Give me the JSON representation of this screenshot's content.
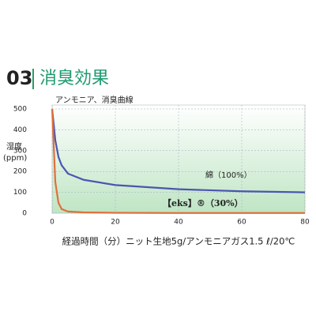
{
  "header": {
    "number": "03",
    "title": "消臭効果"
  },
  "chart_data": {
    "type": "line",
    "title": "アンモニア、消臭曲線",
    "y_label_lines": [
      "湿度",
      "(ppm)"
    ],
    "x_label": "経過時間（分）ニット生地5g/アンモニアガス1.5 ℓ/20℃",
    "x": [
      0,
      1,
      2,
      3,
      5,
      10,
      20,
      40,
      60,
      80
    ],
    "series": [
      {
        "name": "綿（100%）",
        "color": "#4a56b0",
        "values": [
          500,
          350,
          270,
          230,
          190,
          160,
          135,
          115,
          105,
          100
        ]
      },
      {
        "name": "【eks】®（30%）",
        "color": "#e0703a",
        "values": [
          500,
          150,
          50,
          20,
          8,
          4,
          2,
          1,
          1,
          1
        ]
      }
    ],
    "xlim": [
      0,
      80
    ],
    "xticks": [
      0,
      20,
      40,
      60,
      80
    ],
    "ylim": [
      0,
      500
    ],
    "yticks": [
      0,
      100,
      200,
      300,
      400,
      500
    ],
    "grid": true
  }
}
